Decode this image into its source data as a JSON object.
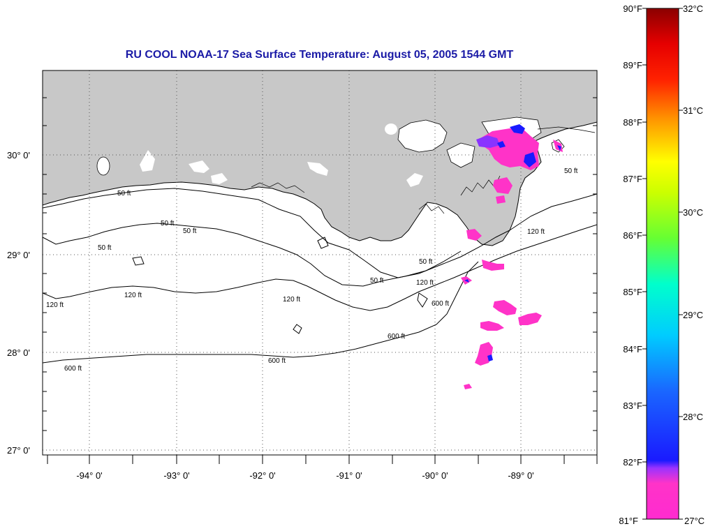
{
  "title": "RU COOL  NOAA-17  Sea Surface Temperature:  August 05, 2005 1544 GMT",
  "lat_labels": [
    "30° 0'",
    "29° 0'",
    "28° 0'",
    "27° 0'"
  ],
  "lon_labels": [
    "-94° 0'",
    "-93° 0'",
    "-92° 0'",
    "-91° 0'",
    "-90° 0'",
    "-89° 0'"
  ],
  "contour_labels": [
    "50 ft",
    "50 ft",
    "50 ft",
    "50 ft",
    "50 ft",
    "50 ft",
    "50 ft",
    "120 ft",
    "120 ft",
    "120 ft",
    "120 ft",
    "120 ft",
    "600 ft",
    "600 ft",
    "600 ft",
    "600 ft"
  ],
  "colorbar": {
    "f_labels": [
      "90°F",
      "89°F",
      "88°F",
      "87°F",
      "86°F",
      "85°F",
      "84°F",
      "83°F",
      "82°F",
      "81°F"
    ],
    "c_labels": [
      "32°C",
      "31°C",
      "30°C",
      "29°C",
      "28°C",
      "27°C"
    ]
  },
  "colors": {
    "land": "#c8c8c8",
    "title": "#1a1aa6",
    "sst_magenta": "#ff33c8",
    "sst_purple": "#8a33ff",
    "sst_blue": "#1a1aff"
  }
}
